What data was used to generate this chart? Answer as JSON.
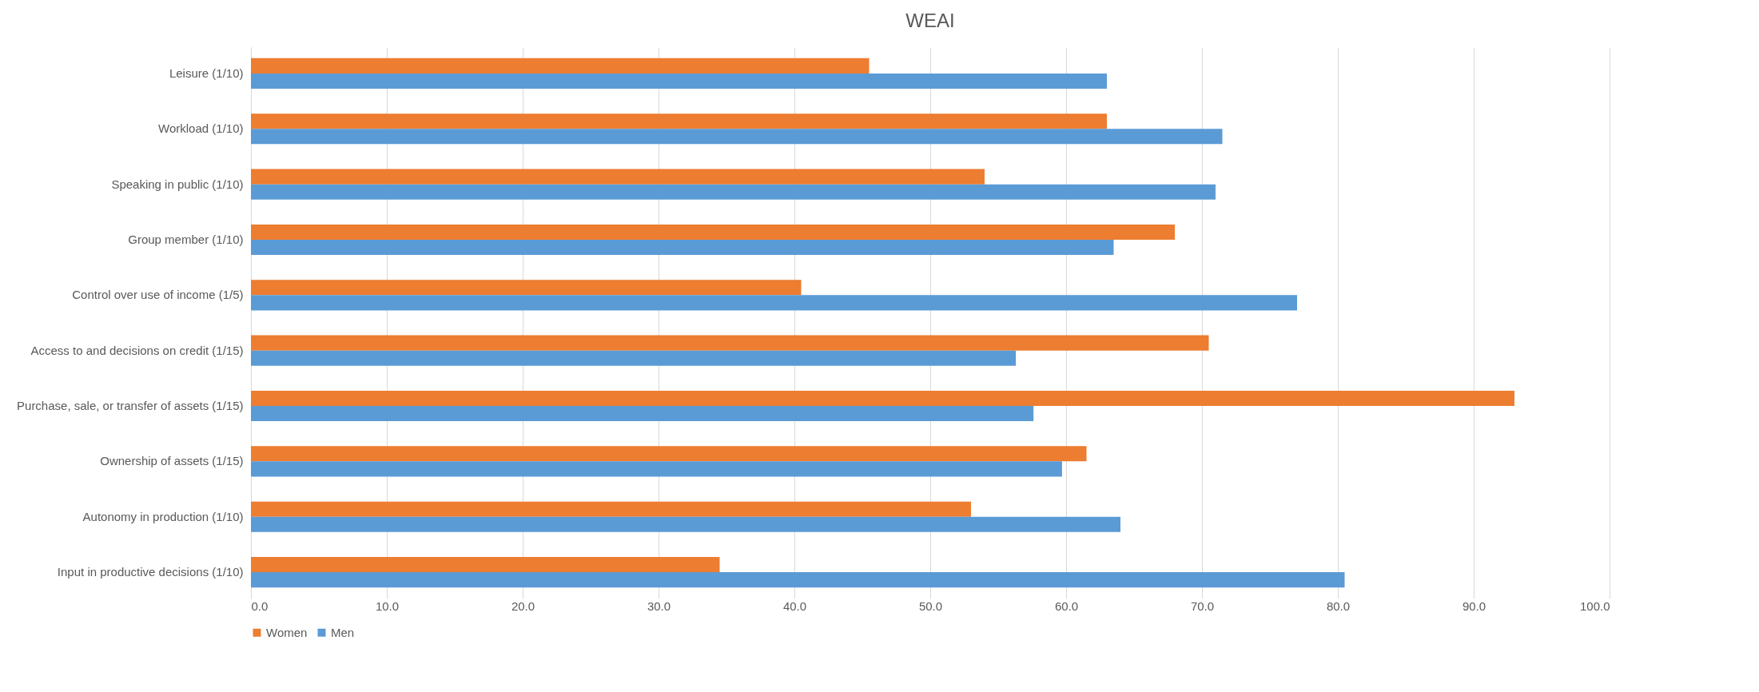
{
  "chart_data": {
    "type": "bar",
    "orientation": "horizontal",
    "title": "WEAI",
    "categories": [
      "Leisure (1/10)",
      "Workload (1/10)",
      "Speaking in public (1/10)",
      "Group member (1/10)",
      "Control over use of income (1/5)",
      "Access to and decisions on credit (1/15)",
      "Purchase, sale, or transfer of assets (1/15)",
      "Ownership of assets (1/15)",
      "Autonomy in production (1/10)",
      "Input in productive decisions (1/10)"
    ],
    "series": [
      {
        "name": "Women",
        "color": "#ed7d31",
        "values": [
          45.5,
          63.0,
          54.0,
          68.0,
          40.5,
          70.5,
          93.0,
          61.5,
          53.0,
          34.5
        ]
      },
      {
        "name": "Men",
        "color": "#5b9bd5",
        "values": [
          63.0,
          71.5,
          71.0,
          63.5,
          77.0,
          56.3,
          57.6,
          59.7,
          64.0,
          80.5
        ]
      }
    ],
    "xlim": [
      0,
      100
    ],
    "xticks": [
      {
        "value": 0,
        "label": "0.0"
      },
      {
        "value": 10,
        "label": "10.0"
      },
      {
        "value": 20,
        "label": "20.0"
      },
      {
        "value": 30,
        "label": "30.0"
      },
      {
        "value": 40,
        "label": "40.0"
      },
      {
        "value": 50,
        "label": "50.0"
      },
      {
        "value": 60,
        "label": "60.0"
      },
      {
        "value": 70,
        "label": "70.0"
      },
      {
        "value": 80,
        "label": "80.0"
      },
      {
        "value": 90,
        "label": "90.0"
      },
      {
        "value": 100,
        "label": "100.0"
      }
    ],
    "grid": "x",
    "legend": "bottom"
  }
}
